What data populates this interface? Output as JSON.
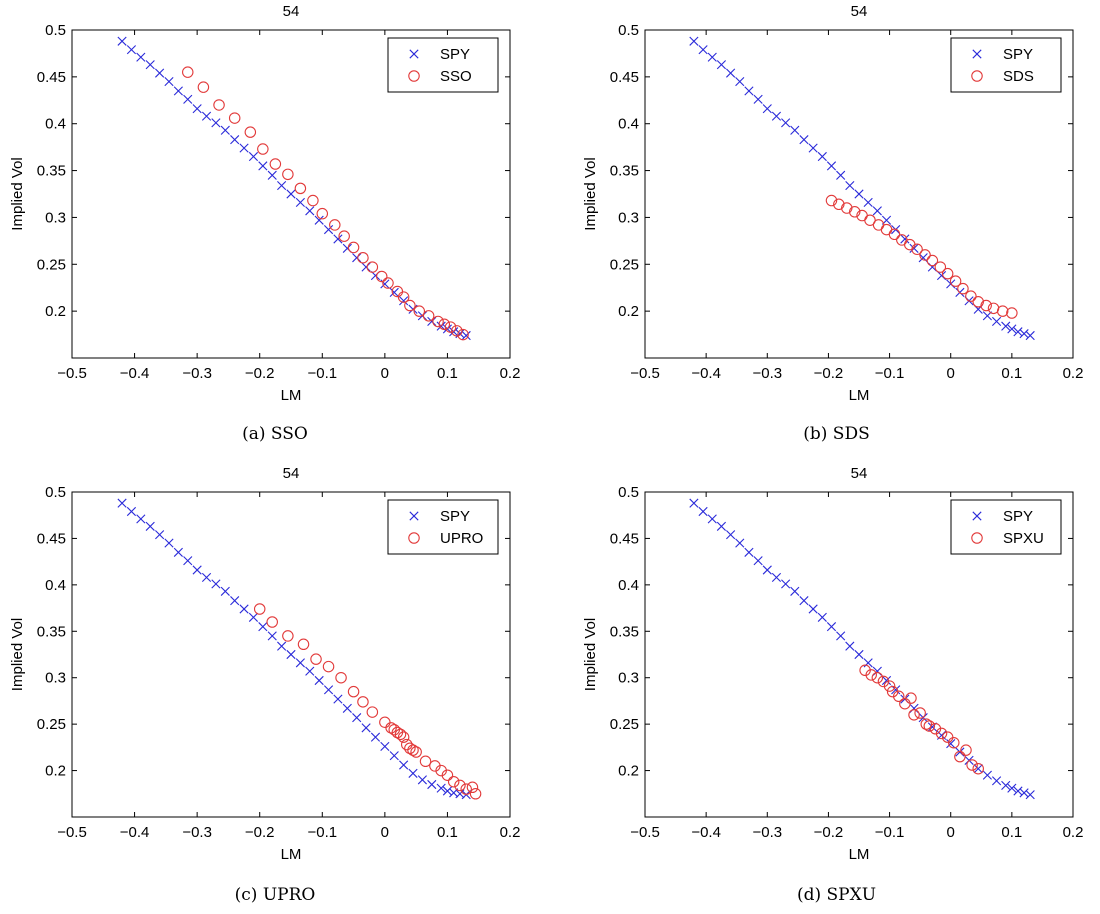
{
  "chart_data": [
    {
      "id": "a",
      "type": "scatter",
      "title": "54",
      "caption": "(a) SSO",
      "xlabel": "LM",
      "ylabel": "Implied Vol",
      "xlim": [
        -0.5,
        0.2
      ],
      "ylim": [
        0.15,
        0.5
      ],
      "xticks": [
        -0.5,
        -0.4,
        -0.3,
        -0.2,
        -0.1,
        0,
        0.1,
        0.2
      ],
      "xtick_labels": [
        "−0.5",
        "−0.4",
        "−0.3",
        "−0.2",
        "−0.1",
        "0",
        "0.1",
        "0.2"
      ],
      "yticks": [
        0.2,
        0.25,
        0.3,
        0.35,
        0.4,
        0.45,
        0.5
      ],
      "ytick_labels": [
        "0.2",
        "0.25",
        "0.3",
        "0.35",
        "0.4",
        "0.45",
        "0.5"
      ],
      "legend_position": "top-right",
      "series": [
        {
          "name": "SPY",
          "marker": "x",
          "color": "#2b2bd9",
          "x": [
            -0.42,
            -0.405,
            -0.39,
            -0.375,
            -0.36,
            -0.345,
            -0.33,
            -0.315,
            -0.3,
            -0.285,
            -0.27,
            -0.255,
            -0.24,
            -0.225,
            -0.21,
            -0.195,
            -0.18,
            -0.165,
            -0.15,
            -0.135,
            -0.12,
            -0.105,
            -0.09,
            -0.075,
            -0.06,
            -0.045,
            -0.03,
            -0.015,
            0,
            0.015,
            0.03,
            0.045,
            0.06,
            0.075,
            0.09,
            0.1,
            0.11,
            0.12,
            0.13
          ],
          "y": [
            0.488,
            0.479,
            0.471,
            0.463,
            0.454,
            0.445,
            0.435,
            0.426,
            0.416,
            0.408,
            0.401,
            0.393,
            0.383,
            0.374,
            0.365,
            0.355,
            0.345,
            0.334,
            0.325,
            0.316,
            0.307,
            0.297,
            0.287,
            0.277,
            0.267,
            0.257,
            0.247,
            0.238,
            0.229,
            0.22,
            0.211,
            0.202,
            0.195,
            0.189,
            0.184,
            0.181,
            0.178,
            0.176,
            0.174
          ]
        },
        {
          "name": "SSO",
          "marker": "o",
          "color": "#e23a3a",
          "x": [
            -0.315,
            -0.29,
            -0.265,
            -0.24,
            -0.215,
            -0.195,
            -0.175,
            -0.155,
            -0.135,
            -0.115,
            -0.1,
            -0.08,
            -0.065,
            -0.05,
            -0.035,
            -0.02,
            -0.005,
            0.005,
            0.02,
            0.03,
            0.04,
            0.055,
            0.07,
            0.085,
            0.095,
            0.105,
            0.115,
            0.125
          ],
          "y": [
            0.455,
            0.439,
            0.42,
            0.406,
            0.391,
            0.373,
            0.357,
            0.346,
            0.331,
            0.318,
            0.304,
            0.292,
            0.28,
            0.268,
            0.257,
            0.247,
            0.237,
            0.23,
            0.221,
            0.215,
            0.206,
            0.2,
            0.195,
            0.189,
            0.186,
            0.183,
            0.179,
            0.175
          ]
        }
      ]
    },
    {
      "id": "b",
      "type": "scatter",
      "title": "54",
      "caption": "(b) SDS",
      "xlabel": "LM",
      "ylabel": "Implied Vol",
      "xlim": [
        -0.5,
        0.2
      ],
      "ylim": [
        0.15,
        0.5
      ],
      "xticks": [
        -0.5,
        -0.4,
        -0.3,
        -0.2,
        -0.1,
        0,
        0.1,
        0.2
      ],
      "xtick_labels": [
        "−0.5",
        "−0.4",
        "−0.3",
        "−0.2",
        "−0.1",
        "0",
        "0.1",
        "0.2"
      ],
      "yticks": [
        0.2,
        0.25,
        0.3,
        0.35,
        0.4,
        0.45,
        0.5
      ],
      "ytick_labels": [
        "0.2",
        "0.25",
        "0.3",
        "0.35",
        "0.4",
        "0.45",
        "0.5"
      ],
      "legend_position": "top-right",
      "series": [
        {
          "name": "SPY",
          "marker": "x",
          "color": "#2b2bd9",
          "x": [
            -0.42,
            -0.405,
            -0.39,
            -0.375,
            -0.36,
            -0.345,
            -0.33,
            -0.315,
            -0.3,
            -0.285,
            -0.27,
            -0.255,
            -0.24,
            -0.225,
            -0.21,
            -0.195,
            -0.18,
            -0.165,
            -0.15,
            -0.135,
            -0.12,
            -0.105,
            -0.09,
            -0.075,
            -0.06,
            -0.045,
            -0.03,
            -0.015,
            0,
            0.015,
            0.03,
            0.045,
            0.06,
            0.075,
            0.09,
            0.1,
            0.11,
            0.12,
            0.13
          ],
          "y": [
            0.488,
            0.479,
            0.471,
            0.463,
            0.454,
            0.445,
            0.435,
            0.426,
            0.416,
            0.408,
            0.401,
            0.393,
            0.383,
            0.374,
            0.365,
            0.355,
            0.345,
            0.334,
            0.325,
            0.316,
            0.307,
            0.297,
            0.287,
            0.277,
            0.267,
            0.257,
            0.247,
            0.238,
            0.229,
            0.22,
            0.211,
            0.202,
            0.195,
            0.189,
            0.184,
            0.181,
            0.178,
            0.176,
            0.174
          ]
        },
        {
          "name": "SDS",
          "marker": "o",
          "color": "#e23a3a",
          "x": [
            -0.195,
            -0.183,
            -0.17,
            -0.157,
            -0.145,
            -0.132,
            -0.118,
            -0.105,
            -0.092,
            -0.08,
            -0.067,
            -0.055,
            -0.042,
            -0.03,
            -0.017,
            -0.005,
            0.008,
            0.02,
            0.033,
            0.045,
            0.058,
            0.07,
            0.085,
            0.1
          ],
          "y": [
            0.318,
            0.314,
            0.31,
            0.306,
            0.302,
            0.297,
            0.292,
            0.287,
            0.282,
            0.276,
            0.271,
            0.266,
            0.26,
            0.254,
            0.247,
            0.24,
            0.232,
            0.224,
            0.216,
            0.21,
            0.206,
            0.203,
            0.2,
            0.198
          ]
        }
      ]
    },
    {
      "id": "c",
      "type": "scatter",
      "title": "54",
      "caption": "(c) UPRO",
      "xlabel": "LM",
      "ylabel": "Implied Vol",
      "xlim": [
        -0.5,
        0.2
      ],
      "ylim": [
        0.15,
        0.5
      ],
      "xticks": [
        -0.5,
        -0.4,
        -0.3,
        -0.2,
        -0.1,
        0,
        0.1,
        0.2
      ],
      "xtick_labels": [
        "−0.5",
        "−0.4",
        "−0.3",
        "−0.2",
        "−0.1",
        "0",
        "0.1",
        "0.2"
      ],
      "yticks": [
        0.2,
        0.25,
        0.3,
        0.35,
        0.4,
        0.45,
        0.5
      ],
      "ytick_labels": [
        "0.2",
        "0.25",
        "0.3",
        "0.35",
        "0.4",
        "0.45",
        "0.5"
      ],
      "legend_position": "top-right",
      "series": [
        {
          "name": "SPY",
          "marker": "x",
          "color": "#2b2bd9",
          "x": [
            -0.42,
            -0.405,
            -0.39,
            -0.375,
            -0.36,
            -0.345,
            -0.33,
            -0.315,
            -0.3,
            -0.285,
            -0.27,
            -0.255,
            -0.24,
            -0.225,
            -0.21,
            -0.195,
            -0.18,
            -0.165,
            -0.15,
            -0.135,
            -0.12,
            -0.105,
            -0.09,
            -0.075,
            -0.06,
            -0.045,
            -0.03,
            -0.015,
            0,
            0.015,
            0.03,
            0.045,
            0.06,
            0.075,
            0.09,
            0.1,
            0.11,
            0.12,
            0.13
          ],
          "y": [
            0.488,
            0.479,
            0.471,
            0.463,
            0.454,
            0.445,
            0.435,
            0.426,
            0.416,
            0.408,
            0.401,
            0.393,
            0.383,
            0.374,
            0.365,
            0.355,
            0.345,
            0.334,
            0.325,
            0.316,
            0.307,
            0.297,
            0.287,
            0.277,
            0.267,
            0.257,
            0.246,
            0.236,
            0.226,
            0.216,
            0.206,
            0.197,
            0.19,
            0.185,
            0.181,
            0.178,
            0.176,
            0.175,
            0.174
          ]
        },
        {
          "name": "UPRO",
          "marker": "o",
          "color": "#e23a3a",
          "x": [
            -0.2,
            -0.18,
            -0.155,
            -0.13,
            -0.11,
            -0.09,
            -0.07,
            -0.05,
            -0.035,
            -0.02,
            0,
            0.01,
            0.015,
            0.02,
            0.025,
            0.03,
            0.035,
            0.04,
            0.045,
            0.05,
            0.065,
            0.08,
            0.09,
            0.1,
            0.11,
            0.12,
            0.13,
            0.14,
            0.145
          ],
          "y": [
            0.374,
            0.36,
            0.345,
            0.336,
            0.32,
            0.312,
            0.3,
            0.285,
            0.274,
            0.263,
            0.252,
            0.246,
            0.244,
            0.241,
            0.239,
            0.236,
            0.228,
            0.224,
            0.222,
            0.22,
            0.21,
            0.205,
            0.2,
            0.195,
            0.188,
            0.184,
            0.18,
            0.182,
            0.175
          ]
        }
      ]
    },
    {
      "id": "d",
      "type": "scatter",
      "title": "54",
      "caption": "(d) SPXU",
      "xlabel": "LM",
      "ylabel": "Implied Vol",
      "xlim": [
        -0.5,
        0.2
      ],
      "ylim": [
        0.15,
        0.5
      ],
      "xticks": [
        -0.5,
        -0.4,
        -0.3,
        -0.2,
        -0.1,
        0,
        0.1,
        0.2
      ],
      "xtick_labels": [
        "−0.5",
        "−0.4",
        "−0.3",
        "−0.2",
        "−0.1",
        "0",
        "0.1",
        "0.2"
      ],
      "yticks": [
        0.2,
        0.25,
        0.3,
        0.35,
        0.4,
        0.45,
        0.5
      ],
      "ytick_labels": [
        "0.2",
        "0.25",
        "0.3",
        "0.35",
        "0.4",
        "0.45",
        "0.5"
      ],
      "legend_position": "top-right",
      "series": [
        {
          "name": "SPY",
          "marker": "x",
          "color": "#2b2bd9",
          "x": [
            -0.42,
            -0.405,
            -0.39,
            -0.375,
            -0.36,
            -0.345,
            -0.33,
            -0.315,
            -0.3,
            -0.285,
            -0.27,
            -0.255,
            -0.24,
            -0.225,
            -0.21,
            -0.195,
            -0.18,
            -0.165,
            -0.15,
            -0.135,
            -0.12,
            -0.105,
            -0.09,
            -0.075,
            -0.06,
            -0.045,
            -0.03,
            -0.015,
            0,
            0.015,
            0.03,
            0.045,
            0.06,
            0.075,
            0.09,
            0.1,
            0.11,
            0.12,
            0.13
          ],
          "y": [
            0.488,
            0.479,
            0.471,
            0.463,
            0.454,
            0.445,
            0.435,
            0.426,
            0.416,
            0.408,
            0.401,
            0.393,
            0.383,
            0.374,
            0.365,
            0.355,
            0.345,
            0.334,
            0.325,
            0.316,
            0.307,
            0.297,
            0.287,
            0.277,
            0.267,
            0.257,
            0.247,
            0.238,
            0.229,
            0.22,
            0.211,
            0.202,
            0.195,
            0.189,
            0.184,
            0.181,
            0.178,
            0.176,
            0.174
          ]
        },
        {
          "name": "SPXU",
          "marker": "o",
          "color": "#e23a3a",
          "x": [
            -0.14,
            -0.13,
            -0.12,
            -0.11,
            -0.1,
            -0.095,
            -0.085,
            -0.075,
            -0.065,
            -0.06,
            -0.05,
            -0.04,
            -0.035,
            -0.025,
            -0.015,
            -0.005,
            0.005,
            0.015,
            0.025,
            0.035,
            0.045
          ],
          "y": [
            0.308,
            0.303,
            0.3,
            0.296,
            0.291,
            0.285,
            0.28,
            0.272,
            0.278,
            0.26,
            0.262,
            0.25,
            0.248,
            0.245,
            0.24,
            0.236,
            0.23,
            0.215,
            0.222,
            0.206,
            0.202
          ]
        }
      ]
    }
  ]
}
